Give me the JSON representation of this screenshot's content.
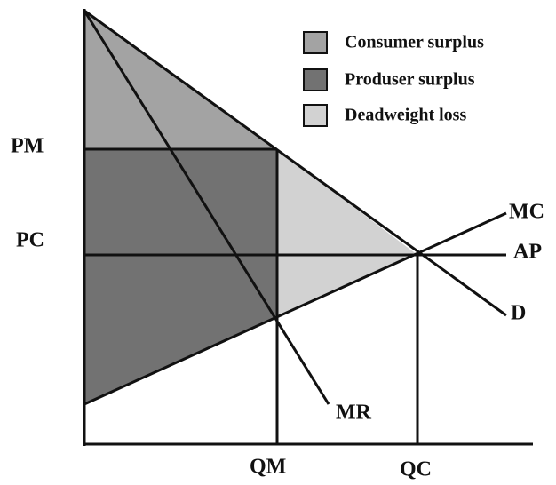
{
  "legend": [
    "Consumer surplus",
    "Produser surplus",
    "Deadweight loss"
  ],
  "price_labels": [
    "PM",
    "PC"
  ],
  "quantity_labels": [
    "QM",
    "QC"
  ],
  "curve_labels": [
    "MC",
    "AP",
    "D",
    "MR"
  ]
}
